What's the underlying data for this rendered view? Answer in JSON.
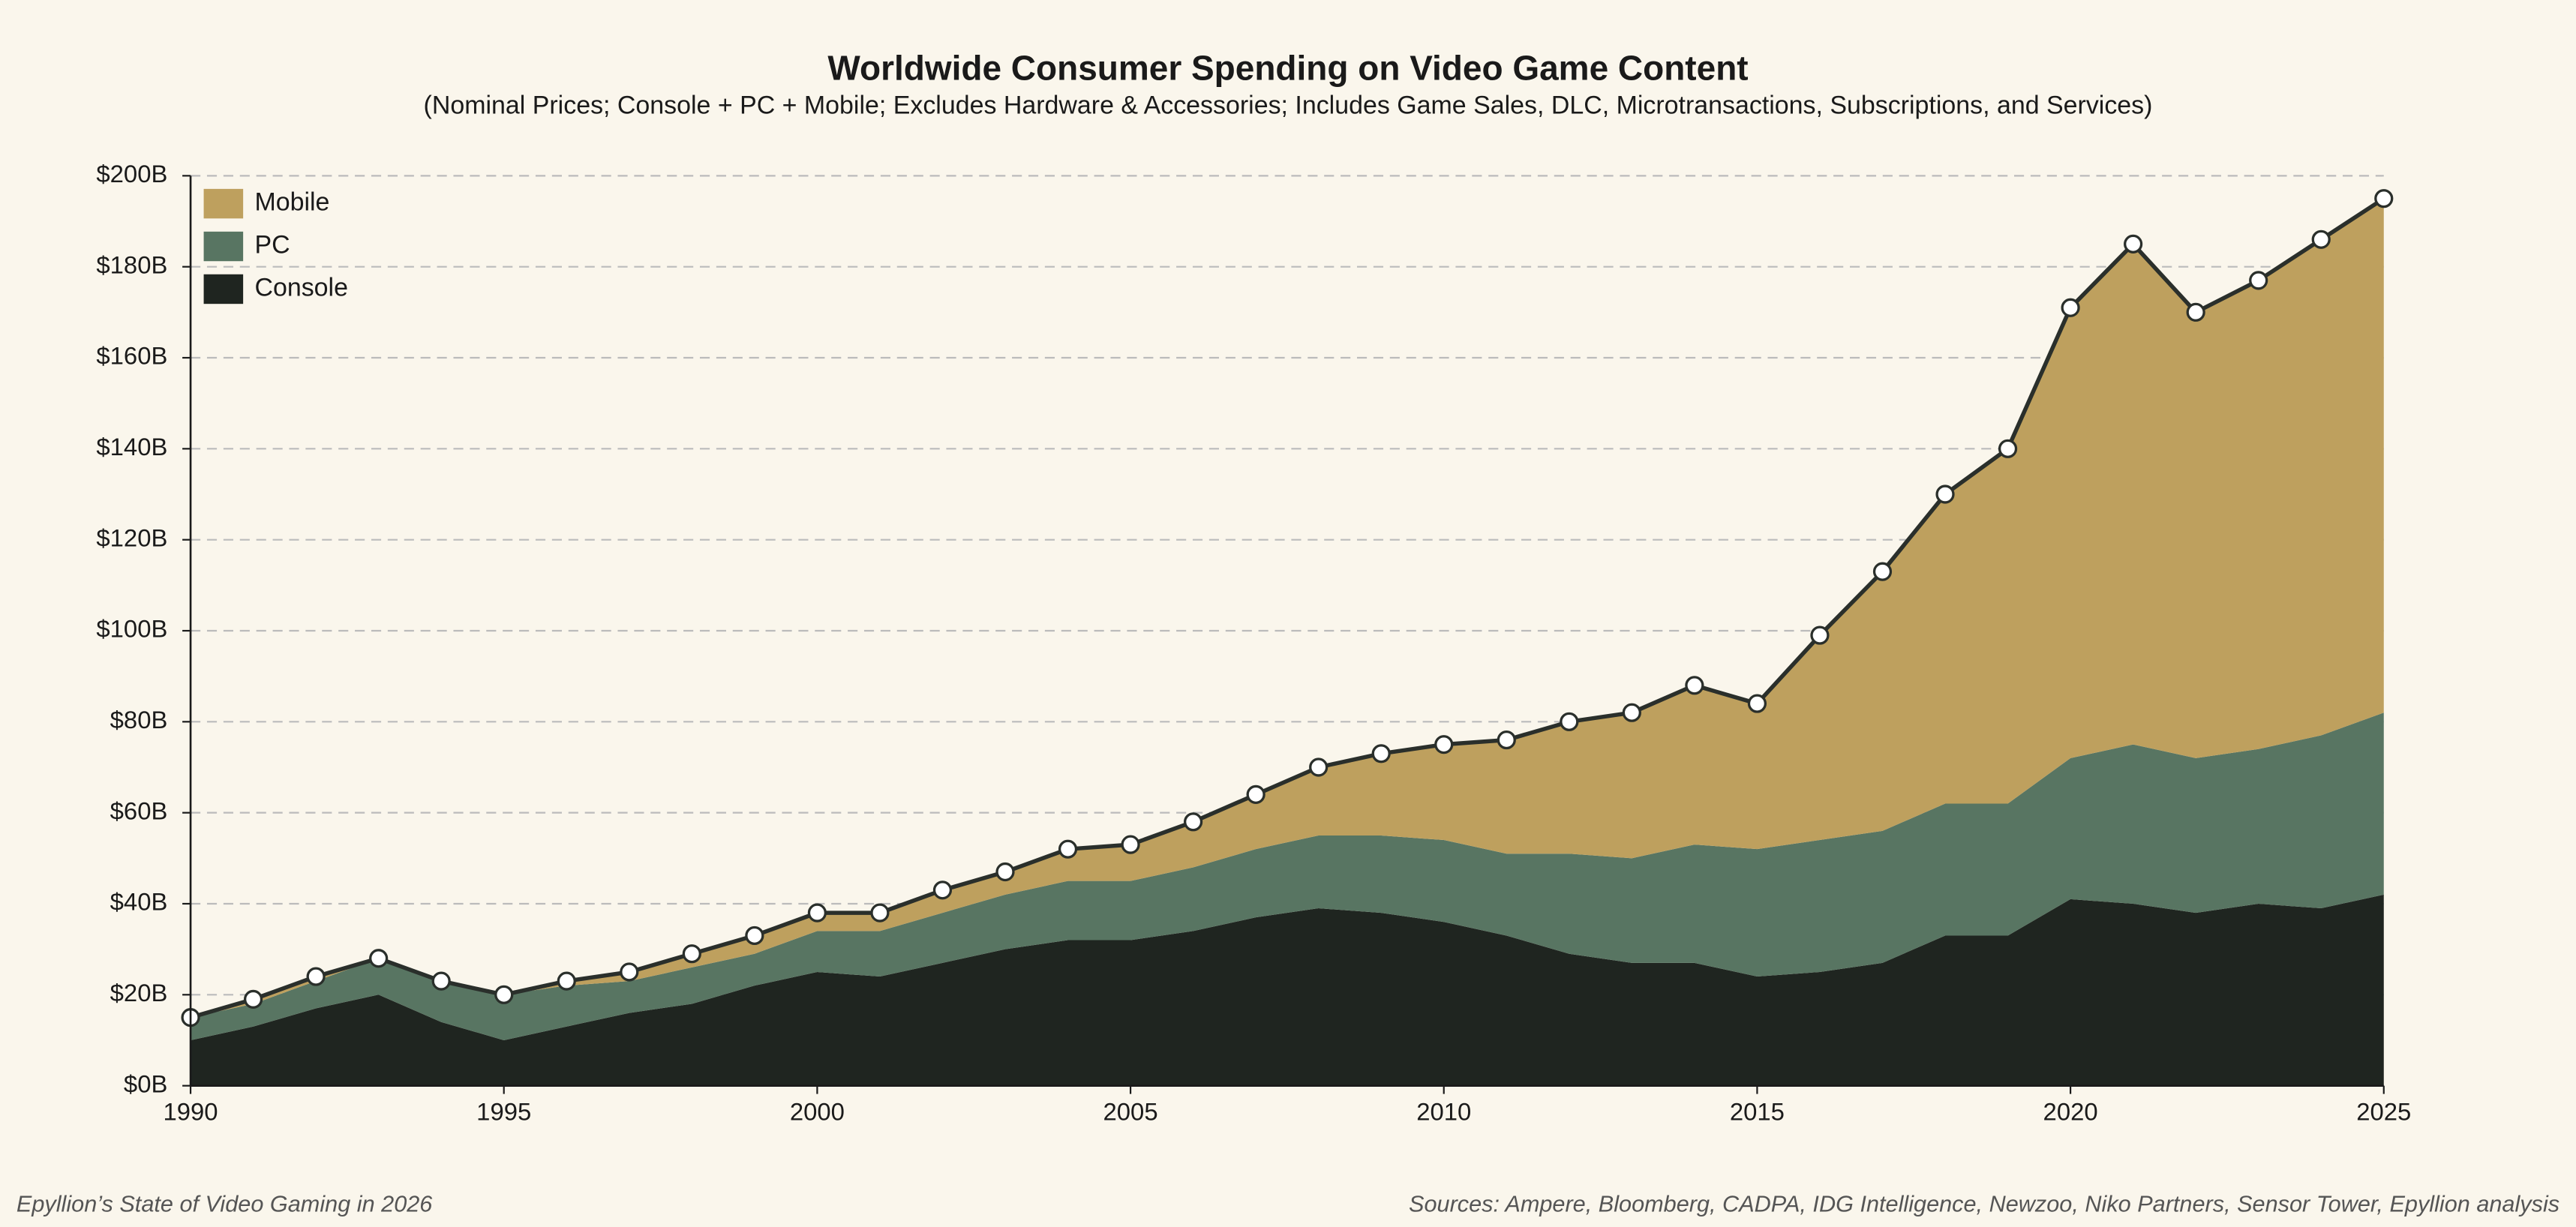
{
  "chart_data": {
    "type": "stacked-area",
    "title": "Worldwide Consumer Spending on Video Game Content",
    "subtitle": "(Nominal Prices; Console + PC + Mobile; Excludes Hardware & Accessories; Includes Game Sales, DLC, Microtransactions, Subscriptions, and Services)",
    "x": [
      1990,
      1991,
      1992,
      1993,
      1994,
      1995,
      1996,
      1997,
      1998,
      1999,
      2000,
      2001,
      2002,
      2003,
      2004,
      2005,
      2006,
      2007,
      2008,
      2009,
      2010,
      2011,
      2012,
      2013,
      2014,
      2015,
      2016,
      2017,
      2018,
      2019,
      2020,
      2021,
      2022,
      2023,
      2024,
      2025
    ],
    "series": [
      {
        "name": "Console",
        "color": "#1f2520",
        "values": [
          10,
          13,
          17,
          20,
          14,
          10,
          13,
          16,
          18,
          22,
          25,
          24,
          27,
          30,
          32,
          32,
          34,
          37,
          39,
          38,
          36,
          33,
          29,
          27,
          27,
          24,
          25,
          27,
          33,
          33,
          41,
          40,
          38,
          40,
          39,
          42
        ]
      },
      {
        "name": "PC",
        "color": "#587562",
        "values": [
          5,
          5,
          6,
          8,
          9,
          10,
          9,
          7,
          8,
          7,
          9,
          10,
          11,
          12,
          13,
          13,
          14,
          15,
          16,
          17,
          18,
          18,
          22,
          23,
          26,
          28,
          29,
          29,
          29,
          29,
          31,
          35,
          34,
          34,
          38,
          40
        ]
      },
      {
        "name": "Mobile",
        "color": "#bea05e",
        "values": [
          0,
          1,
          1,
          0,
          0,
          0,
          1,
          2,
          3,
          4,
          4,
          4,
          5,
          5,
          7,
          8,
          10,
          12,
          15,
          18,
          21,
          25,
          29,
          32,
          35,
          32,
          45,
          57,
          68,
          78,
          99,
          110,
          98,
          103,
          109,
          113
        ]
      }
    ],
    "xlim": [
      1990,
      2025
    ],
    "xticks": [
      1990,
      1995,
      2000,
      2005,
      2010,
      2015,
      2020,
      2025
    ],
    "ylim": [
      0,
      200
    ],
    "yticks": [
      {
        "value": 0,
        "label": "$0B"
      },
      {
        "value": 20,
        "label": "$20B"
      },
      {
        "value": 40,
        "label": "$40B"
      },
      {
        "value": 60,
        "label": "$60B"
      },
      {
        "value": 80,
        "label": "$80B"
      },
      {
        "value": 100,
        "label": "$100B"
      },
      {
        "value": 120,
        "label": "$120B"
      },
      {
        "value": 140,
        "label": "$140B"
      },
      {
        "value": 160,
        "label": "$160B"
      },
      {
        "value": 180,
        "label": "$180B"
      },
      {
        "value": 200,
        "label": "$200B"
      }
    ],
    "grid": true,
    "legend": "upper-left",
    "footer_left": "Epyllion’s State of Video Gaming in 2026",
    "footer_right": "Sources: Ampere, Bloomberg, CADPA, IDG Intelligence, Newzoo, Niko Partners, Sensor Tower, Epyllion analysis"
  }
}
